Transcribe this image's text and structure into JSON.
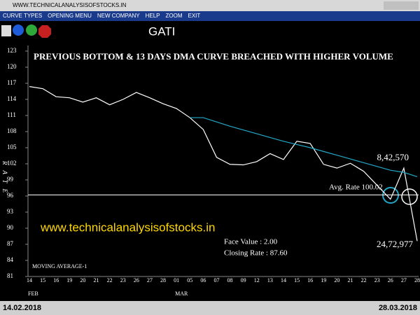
{
  "window": {
    "title": "WWW.TECHNICALANALYSISOFSTOCKS.IN",
    "menu": [
      "CURVE TYPES",
      "OPENING MENU",
      "NEW COMPANY",
      "HELP",
      "ZOOM",
      "EXIT"
    ],
    "start_date": "14.02.2018",
    "end_date": "28.03.2018"
  },
  "chart_data": {
    "type": "line",
    "title": "GATI",
    "annotation": "PREVIOUS BOTTOM & 13 DAYS DMA CURVE BREACHED WITH HIGHER VOLUME",
    "watermark": "www.technicalanalysisofstocks.in",
    "y_label": "RATE",
    "volume_1": "8,42,570",
    "volume_2": "24,72,977",
    "avg_rate": "Avg. Rate 100.02",
    "face_value": "Face Value   : 2.00",
    "closing_rate": "Closing Rate : 87.60",
    "indicator_label": "MOVING AVERAGE-1",
    "months": [
      {
        "label": "FEB",
        "index": 0
      },
      {
        "label": "MAR",
        "index": 11
      }
    ],
    "categories": [
      "14",
      "15",
      "16",
      "19",
      "20",
      "21",
      "22",
      "23",
      "26",
      "27",
      "28",
      "01",
      "05",
      "06",
      "07",
      "08",
      "09",
      "12",
      "13",
      "14",
      "15",
      "16",
      "19",
      "20",
      "21",
      "22",
      "23",
      "26",
      "27",
      "28"
    ],
    "series": [
      {
        "name": "Price",
        "color": "#ffffff",
        "values": [
          116.4,
          116,
          114.5,
          114.3,
          113.5,
          114.3,
          113,
          114,
          115.3,
          114.3,
          113.2,
          112.3,
          110.6,
          108.4,
          103.2,
          101.9,
          101.8,
          102.4,
          103.9,
          102.8,
          106.2,
          105.8,
          101.9,
          101.2,
          102.1,
          100.6,
          98,
          95.4,
          101.2,
          87.6
        ]
      },
      {
        "name": "Moving Average",
        "color": "#22a8c8",
        "values": [
          null,
          null,
          null,
          null,
          null,
          null,
          null,
          null,
          null,
          null,
          null,
          null,
          110.6,
          110.6,
          109.8,
          109,
          108.3,
          107.6,
          106.9,
          106.2,
          105.6,
          105,
          104.3,
          103.6,
          102.9,
          102.2,
          101.5,
          100.8,
          100.4,
          99.6
        ]
      }
    ],
    "support_level": 96.2,
    "ylim": [
      81,
      123
    ],
    "yticks": [
      123,
      120,
      117,
      114,
      111,
      108,
      105,
      102,
      99,
      96,
      93,
      90,
      87,
      84,
      81
    ]
  }
}
